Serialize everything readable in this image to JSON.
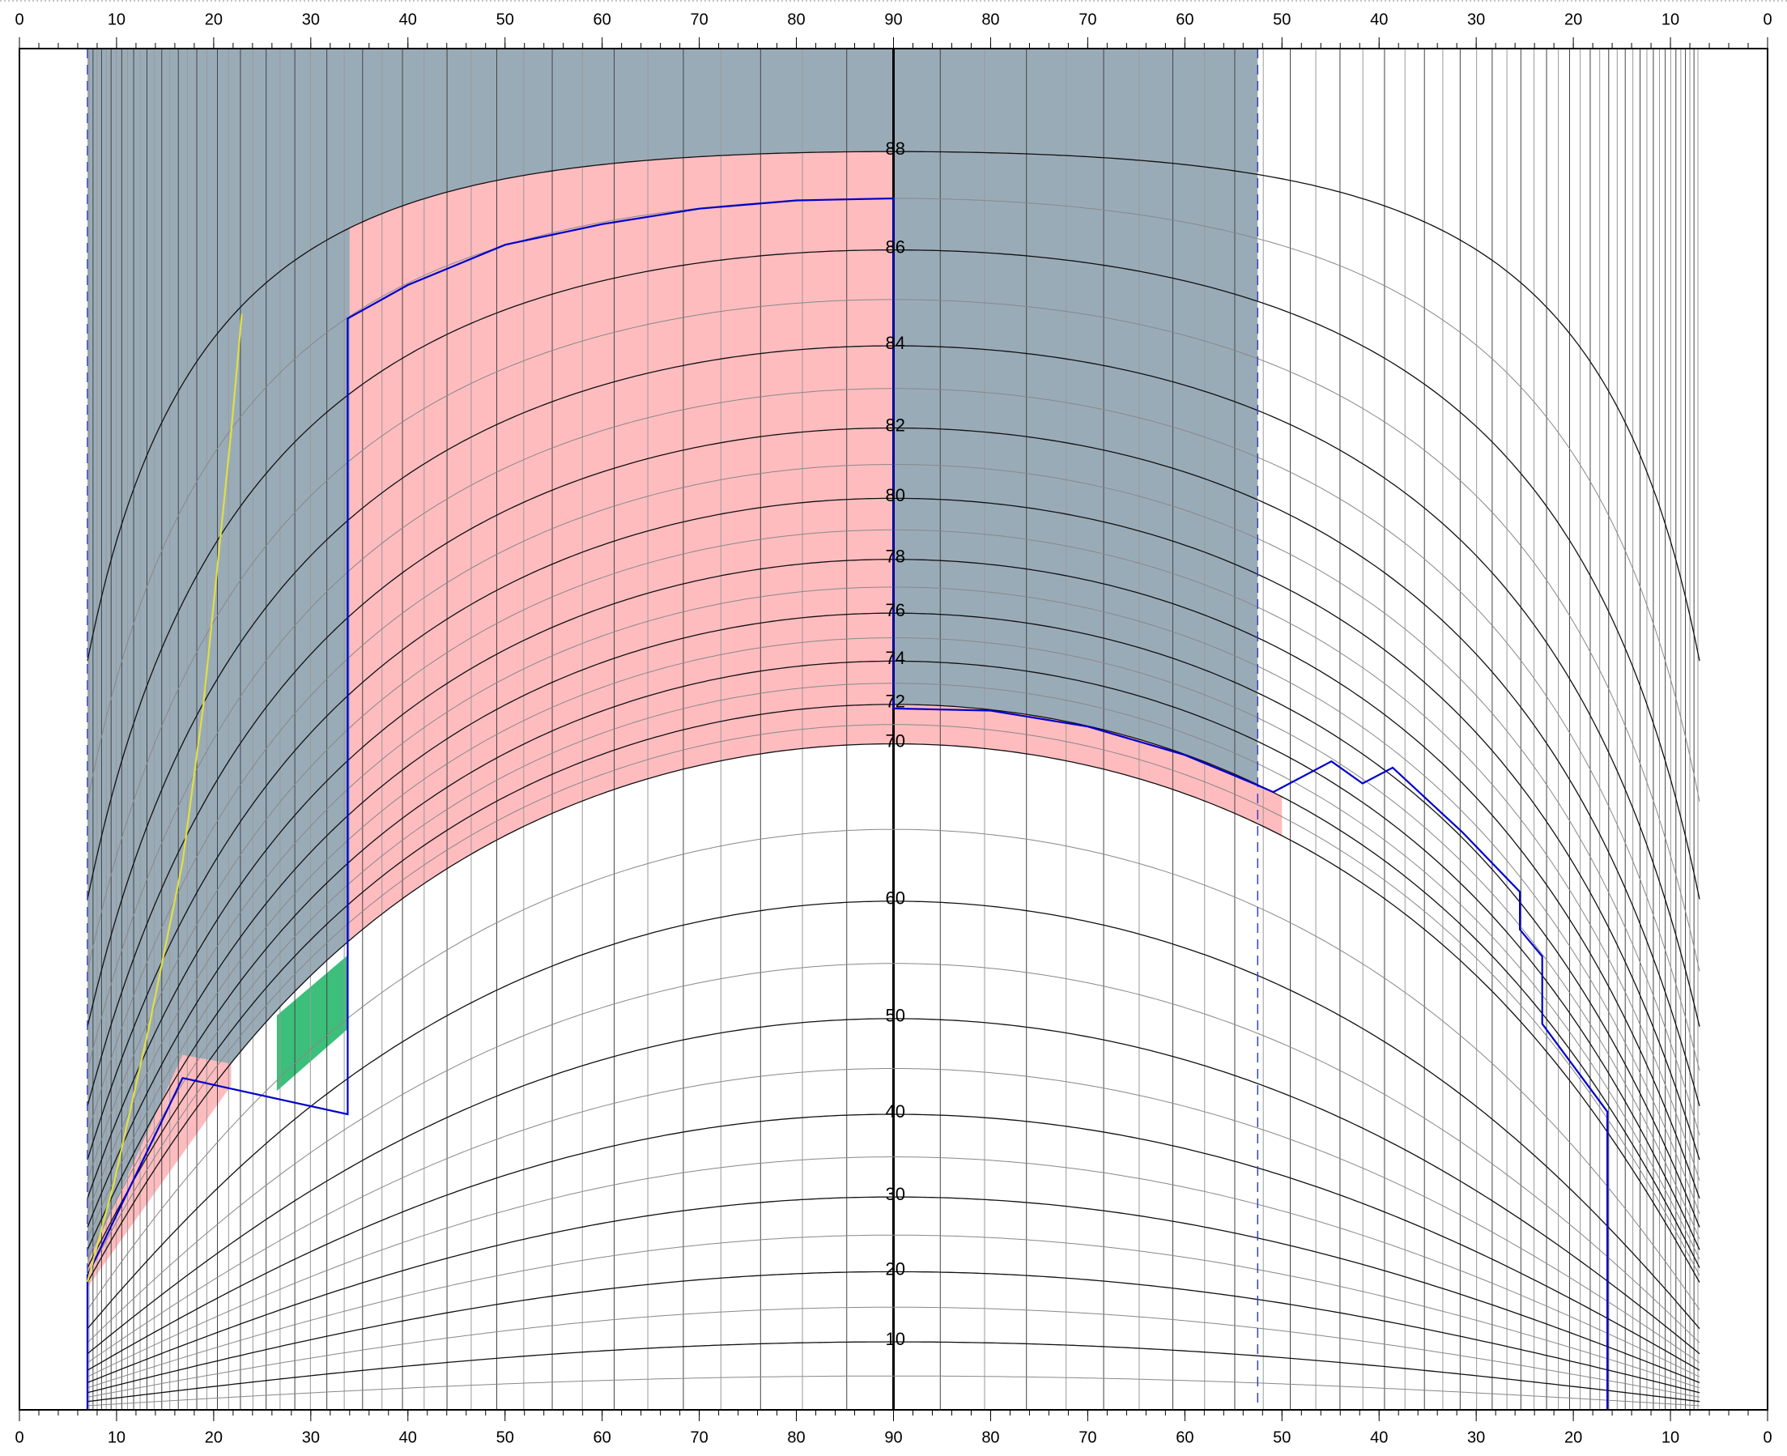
{
  "chart_data": {
    "type": "curves",
    "xlim": [
      0,
      180
    ],
    "xticks": [
      0,
      10,
      20,
      30,
      40,
      50,
      60,
      70,
      80,
      90,
      {
        "value": 100,
        "label": "80"
      },
      {
        "value": 110,
        "label": "70"
      },
      {
        "value": 120,
        "label": "60"
      },
      {
        "value": 130,
        "label": "50"
      },
      {
        "value": 140,
        "label": "40"
      },
      {
        "value": 150,
        "label": "30"
      },
      {
        "value": 160,
        "label": "20"
      },
      {
        "value": 170,
        "label": "10"
      },
      {
        "value": 180,
        "label": "0"
      }
    ],
    "curve_xlim": [
      7,
      173
    ],
    "curve_levels": [
      88,
      86,
      84,
      82,
      80,
      78,
      76,
      74,
      72,
      70,
      60,
      50,
      40,
      30,
      20,
      10
    ],
    "regions": [
      {
        "color": "#9aabb8",
        "x": [
          7,
          90
        ],
        "levels": [
          70
        ]
      },
      {
        "color": "#9aabb8",
        "x": [
          90,
          127.5
        ],
        "levels": [
          72
        ]
      },
      {
        "color": "#ffbcbf",
        "x": [
          34,
          90
        ],
        "levels": [
          70,
          88
        ]
      },
      {
        "color": "#ffbcbf",
        "x": [
          90,
          130
        ],
        "levels": [
          70,
          72
        ]
      }
    ],
    "polygons": [
      {
        "color": "#ffbcbf",
        "x": [
          7,
          16.8,
          21.8,
          21.8,
          7
        ],
        "y": [
          21.1,
          46.4,
          45.5,
          43.2,
          17.8
        ]
      },
      {
        "color": "#3cbf7a",
        "x": [
          26.5,
          33.8,
          33.8,
          26.5
        ],
        "y": [
          50.3,
          55.7,
          49,
          42.6
        ]
      }
    ],
    "series": [
      {
        "color": "#0000cc",
        "x": [
          7,
          7,
          16.8,
          33.8,
          33.8,
          40,
          50,
          60,
          70,
          80,
          90,
          90
        ],
        "y": [
          0,
          19.5,
          44,
          40,
          84.6,
          85.3,
          86.1,
          86.5,
          86.8,
          86.96,
          87,
          71.8
        ]
      },
      {
        "color": "#0000cc",
        "x": [
          90,
          100,
          110,
          120,
          127.5,
          129.1,
          135.1,
          138.3,
          141.4,
          148.6,
          154.5,
          154.5,
          156.8,
          156.8,
          163.5,
          163.5
        ],
        "y": [
          71.8,
          71.7,
          70.9,
          69.4,
          67.7,
          67.3,
          69.05,
          67.8,
          68.7,
          64.8,
          60.7,
          57.8,
          55.6,
          49.5,
          40.3,
          0
        ]
      },
      {
        "color": "#e0e040",
        "x": [
          7,
          9.7,
          13.3,
          16.8,
          18.9,
          21.8,
          22.9
        ],
        "y": [
          18.6,
          31.6,
          49,
          62.8,
          71.8,
          81.9,
          84.7
        ]
      }
    ],
    "dashed_x": [
      7,
      127.5
    ]
  }
}
